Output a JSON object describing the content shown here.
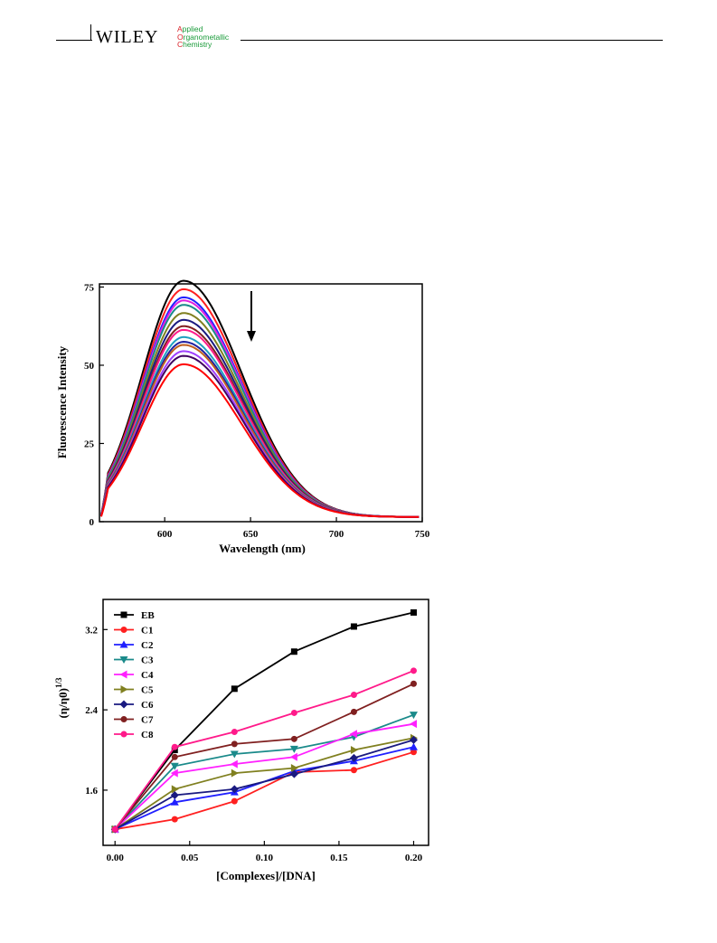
{
  "header": {
    "publisher": "WILEY",
    "journal_lines": [
      {
        "first": "A",
        "rest": "pplied"
      },
      {
        "first": "O",
        "rest": "rganometallic"
      },
      {
        "first": "C",
        "rest": "hemistry"
      }
    ],
    "colors": {
      "journal_green": "#1a9b3a",
      "journal_red": "#d9232a"
    }
  },
  "chart_data": [
    {
      "type": "line",
      "xlabel": "Wavelength (nm)",
      "ylabel": "Fluorescence Intensity",
      "xlim": [
        562,
        750
      ],
      "ylim": [
        0,
        76
      ],
      "x_ticks": [
        600,
        650,
        700,
        750
      ],
      "y_ticks": [
        0,
        25,
        50,
        75
      ],
      "annotation": "downward-arrow",
      "series": [
        {
          "color": "#000000",
          "peak": 75.5,
          "width_l": 24,
          "width_r": 34
        },
        {
          "color": "#ff2020",
          "peak": 72.8,
          "width_l": 24,
          "width_r": 34
        },
        {
          "color": "#2020ff",
          "peak": 70.2,
          "width_l": 24,
          "width_r": 34
        },
        {
          "color": "#e020e0",
          "peak": 69.2,
          "width_l": 24,
          "width_r": 34
        },
        {
          "color": "#1a8a8a",
          "peak": 67.8,
          "width_l": 24,
          "width_r": 34
        },
        {
          "color": "#808020",
          "peak": 65.2,
          "width_l": 24,
          "width_r": 34
        },
        {
          "color": "#1a1a80",
          "peak": 63.0,
          "width_l": 24,
          "width_r": 34
        },
        {
          "color": "#802020",
          "peak": 61.0,
          "width_l": 24,
          "width_r": 34
        },
        {
          "color": "#ff1a8a",
          "peak": 59.8,
          "width_l": 24,
          "width_r": 34
        },
        {
          "color": "#20a0c0",
          "peak": 57.5,
          "width_l": 24,
          "width_r": 34
        },
        {
          "color": "#2020a0",
          "peak": 56.0,
          "width_l": 24,
          "width_r": 34
        },
        {
          "color": "#c06020",
          "peak": 55.0,
          "width_l": 24,
          "width_r": 34
        },
        {
          "color": "#a040ff",
          "peak": 53.0,
          "width_l": 24,
          "width_r": 34
        },
        {
          "color": "#400060",
          "peak": 51.5,
          "width_l": 24,
          "width_r": 34
        },
        {
          "color": "#ff0000",
          "peak": 48.8,
          "width_l": 24,
          "width_r": 34
        }
      ]
    },
    {
      "type": "line",
      "xlabel": "[Complexes]/[DNA]",
      "ylabel": "(η/η0)1/3",
      "xlim": [
        -0.008,
        0.21
      ],
      "ylim": [
        1.05,
        3.5
      ],
      "x_ticks": [
        "0.00",
        "0.05",
        "0.10",
        "0.15",
        "0.20"
      ],
      "y_ticks": [
        "1.6",
        "2.4",
        "3.2"
      ],
      "legend_position": "top-left",
      "x": [
        0.0,
        0.04,
        0.08,
        0.12,
        0.16,
        0.2
      ],
      "series": [
        {
          "name": "EB",
          "color": "#000000",
          "marker": "square",
          "values": [
            1.21,
            2.0,
            2.61,
            2.98,
            3.23,
            3.37
          ]
        },
        {
          "name": "C1",
          "color": "#ff2020",
          "marker": "circle",
          "values": [
            1.21,
            1.31,
            1.49,
            1.78,
            1.8,
            1.98
          ]
        },
        {
          "name": "C2",
          "color": "#2020ff",
          "marker": "triangle-up",
          "values": [
            1.21,
            1.48,
            1.58,
            1.79,
            1.89,
            2.03
          ]
        },
        {
          "name": "C3",
          "color": "#1a8a8a",
          "marker": "triangle-down",
          "values": [
            1.21,
            1.84,
            1.96,
            2.01,
            2.13,
            2.35
          ]
        },
        {
          "name": "C4",
          "color": "#ff20ff",
          "marker": "triangle-left",
          "values": [
            1.21,
            1.77,
            1.86,
            1.93,
            2.16,
            2.26
          ]
        },
        {
          "name": "C5",
          "color": "#808020",
          "marker": "triangle-right",
          "values": [
            1.21,
            1.61,
            1.77,
            1.82,
            2.0,
            2.12
          ]
        },
        {
          "name": "C6",
          "color": "#1a1a80",
          "marker": "diamond",
          "values": [
            1.21,
            1.55,
            1.61,
            1.76,
            1.92,
            2.1
          ]
        },
        {
          "name": "C7",
          "color": "#802020",
          "marker": "circle",
          "values": [
            1.21,
            1.93,
            2.06,
            2.11,
            2.38,
            2.66
          ]
        },
        {
          "name": "C8",
          "color": "#ff1a8a",
          "marker": "circle",
          "values": [
            1.21,
            2.03,
            2.18,
            2.37,
            2.55,
            2.79
          ]
        }
      ]
    }
  ]
}
